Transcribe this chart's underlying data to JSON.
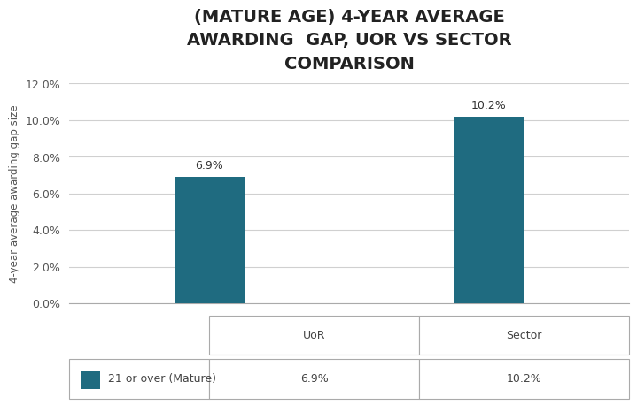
{
  "title": "(MATURE AGE) 4-YEAR AVERAGE\nAWARDING  GAP, UOR VS SECTOR\nCOMPARISON",
  "categories": [
    "UoR",
    "Sector"
  ],
  "values": [
    6.9,
    10.2
  ],
  "bar_color": "#1f6b80",
  "ylabel": "4-year average awarding gap size",
  "ylim": [
    0,
    0.12
  ],
  "yticks": [
    0.0,
    0.02,
    0.04,
    0.06,
    0.08,
    0.1,
    0.12
  ],
  "ytick_labels": [
    "0.0%",
    "2.0%",
    "4.0%",
    "6.0%",
    "8.0%",
    "10.0%",
    "12.0%"
  ],
  "bar_labels": [
    "6.9%",
    "10.2%"
  ],
  "legend_label": "21 or over (Mature)",
  "legend_color": "#1f6b80",
  "table_row_values": [
    "6.9%",
    "10.2%"
  ],
  "title_fontsize": 14,
  "axis_label_fontsize": 8.5,
  "tick_fontsize": 9,
  "bar_label_fontsize": 9,
  "background_color": "#ffffff",
  "grid_color": "#d0d0d0",
  "bar_width": 0.25
}
